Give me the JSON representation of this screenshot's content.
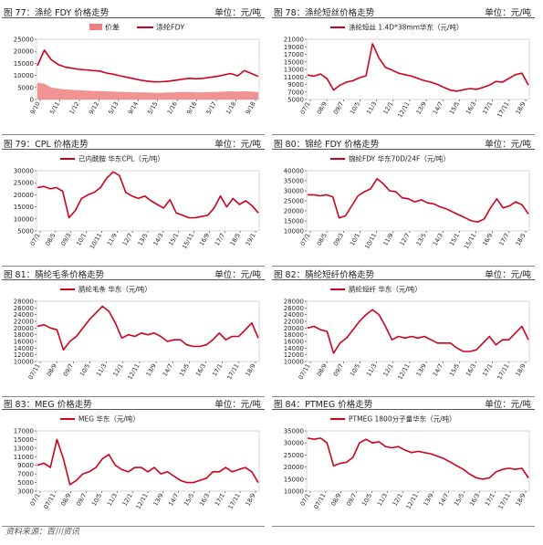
{
  "source": "资料来源：百川资讯",
  "chart_data": [
    {
      "type": "line",
      "title": "图 77：涤纶 FDY 价格走势",
      "unit": "单位：元/吨",
      "legend": [
        "价差",
        "涤纶FDY"
      ],
      "series_colors": [
        "#f08080",
        "#d0021b"
      ],
      "legend_placement": "top",
      "ylim": [
        0,
        25000
      ],
      "yticks": [
        0,
        5000,
        10000,
        15000,
        20000,
        25000
      ],
      "xticks": [
        "9/10",
        "5/11",
        "1/12",
        "9/12",
        "5/13",
        "9/14",
        "5/15",
        "1/16",
        "9/16",
        "5/17",
        "1/18",
        "9/18"
      ],
      "series": [
        {
          "name": "涤纶FDY",
          "kind": "line",
          "values": [
            14000,
            20500,
            16500,
            14500,
            13500,
            13000,
            12500,
            12300,
            12000,
            11800,
            11000,
            10500,
            9800,
            9200,
            8600,
            8000,
            7600,
            7300,
            7400,
            7600,
            8000,
            8400,
            8800,
            8600,
            8800,
            9200,
            9600,
            10200,
            10800,
            9800,
            12000,
            10800,
            9600
          ]
        },
        {
          "name": "价差",
          "kind": "area",
          "values": [
            7000,
            6500,
            5000,
            4500,
            4200,
            4000,
            3900,
            3700,
            3600,
            3500,
            3400,
            3300,
            3200,
            3100,
            3000,
            3000,
            2900,
            2800,
            2800,
            2900,
            3000,
            3100,
            3100,
            3000,
            3000,
            3100,
            3200,
            3300,
            3400,
            3300,
            3400,
            3300,
            3100
          ]
        }
      ]
    },
    {
      "type": "line",
      "title": "图 78：涤纶短丝价格走势",
      "unit": "单位：元/吨",
      "legend": [
        "涤纶短丝 1.4D*38mm华东（元/吨）"
      ],
      "series_colors": [
        "#d0021b"
      ],
      "legend_placement": "top",
      "ylim": [
        5000,
        21000
      ],
      "yticks": [
        5000,
        7000,
        9000,
        11000,
        13000,
        15000,
        17000,
        19000,
        21000
      ],
      "xticks": [
        "07/1",
        "08/9",
        "09/7",
        "10/5",
        "11/3",
        "12/1",
        "12/11",
        "13/9",
        "14/7",
        "15/5",
        "16/3",
        "17/1",
        "17/11",
        "18/9"
      ],
      "series": [
        {
          "name": "涤纶短丝 1.4D*38mm华东",
          "values": [
            11500,
            11200,
            11800,
            10500,
            7500,
            8800,
            9600,
            10000,
            10800,
            11300,
            19800,
            16000,
            13500,
            12800,
            12000,
            11600,
            11200,
            10600,
            10000,
            9600,
            9000,
            8200,
            7500,
            7200,
            7600,
            7900,
            7700,
            8200,
            8800,
            9800,
            9600,
            10600,
            11600,
            12000,
            8800
          ]
        }
      ]
    },
    {
      "type": "line",
      "title": "图 79：CPL 价格走势",
      "unit": "单位：元/吨",
      "legend": [
        "己内酰胺 华东CPL（元/吨）"
      ],
      "series_colors": [
        "#d0021b"
      ],
      "legend_placement": "top",
      "ylim": [
        5000,
        30000
      ],
      "yticks": [
        5000,
        10000,
        15000,
        20000,
        25000,
        30000
      ],
      "xticks": [
        "07/1",
        "08/5",
        "09/3",
        "10/1",
        "10/11",
        "11/9",
        "12/7",
        "13/5",
        "14/3",
        "15/1",
        "15/11",
        "16/9",
        "17/7",
        "18/5",
        "19/1"
      ],
      "series": [
        {
          "name": "己内酰胺 华东CPL",
          "values": [
            23000,
            23500,
            22500,
            23000,
            21500,
            10500,
            13500,
            18500,
            20000,
            21000,
            23000,
            27000,
            29500,
            28000,
            21000,
            19500,
            18500,
            19500,
            17500,
            16000,
            14500,
            18000,
            12500,
            11500,
            10500,
            10500,
            11000,
            11500,
            14500,
            19500,
            15000,
            18500,
            16000,
            17500,
            15500,
            12500
          ]
        }
      ]
    },
    {
      "type": "line",
      "title": "图 80：锦纶 FDY 价格走势",
      "unit": "单位：元/吨",
      "legend": [
        "锦纶FDY 华东70D/24F（元/吨）"
      ],
      "series_colors": [
        "#d0021b"
      ],
      "legend_placement": "top",
      "ylim": [
        10000,
        40000
      ],
      "yticks": [
        10000,
        15000,
        20000,
        25000,
        30000,
        35000,
        40000
      ],
      "xticks": [
        "07/1",
        "08/5",
        "09/3",
        "10/1",
        "10/11",
        "11/9",
        "12/7",
        "13/5",
        "14/3",
        "15/1",
        "15/11",
        "16/9",
        "17/7",
        "18/5"
      ],
      "series": [
        {
          "name": "锦纶FDY 华东70D/24F",
          "values": [
            28000,
            28000,
            27500,
            28000,
            27000,
            16500,
            17500,
            22500,
            27500,
            29500,
            31000,
            36000,
            33500,
            30000,
            29500,
            26500,
            26000,
            24500,
            25500,
            24000,
            23500,
            22000,
            21000,
            19500,
            18000,
            16500,
            15000,
            14500,
            16000,
            21500,
            26000,
            21500,
            22500,
            24500,
            23000,
            18500
          ]
        }
      ]
    },
    {
      "type": "line",
      "title": "图 81：腈纶毛条价格走势",
      "unit": "单位：元/吨",
      "legend": [
        "腈纶毛条 华东（元/吨）"
      ],
      "series_colors": [
        "#d0021b"
      ],
      "legend_placement": "top",
      "ylim": [
        10000,
        28000
      ],
      "yticks": [
        10000,
        12000,
        14000,
        16000,
        18000,
        20000,
        22000,
        24000,
        26000,
        28000
      ],
      "xticks": [
        "07/11",
        "08/9",
        "09/7",
        "10/5",
        "11/3",
        "12/1",
        "12/11",
        "13/9",
        "14/7",
        "15/5",
        "16/3",
        "17/1",
        "17/11",
        "18/9"
      ],
      "series": [
        {
          "name": "腈纶毛条 华东",
          "values": [
            20500,
            21000,
            20000,
            19500,
            13500,
            16000,
            17500,
            20000,
            22500,
            24500,
            26500,
            25000,
            21500,
            17000,
            18000,
            17500,
            18500,
            18000,
            18500,
            17500,
            16000,
            16500,
            16500,
            15000,
            14500,
            14500,
            15000,
            16500,
            18500,
            16500,
            17500,
            17500,
            19500,
            21500,
            17000
          ]
        }
      ]
    },
    {
      "type": "line",
      "title": "图 82：腈纶短纤价格走势",
      "unit": "单位：元/吨",
      "legend": [
        "腈纶短纤 华东（元/吨）"
      ],
      "series_colors": [
        "#d0021b"
      ],
      "legend_placement": "top",
      "ylim": [
        10000,
        28000
      ],
      "yticks": [
        10000,
        12000,
        14000,
        16000,
        18000,
        20000,
        22000,
        24000,
        26000,
        28000
      ],
      "xticks": [
        "07/11",
        "08/9",
        "09/7",
        "10/5",
        "11/3",
        "12/1",
        "12/11",
        "13/9",
        "14/7",
        "15/5",
        "16/3",
        "17/1",
        "17/11",
        "18/9"
      ],
      "series": [
        {
          "name": "腈纶短纤 华东",
          "values": [
            20000,
            20500,
            19500,
            19000,
            12500,
            15500,
            17000,
            19500,
            22000,
            24000,
            25500,
            24000,
            20500,
            16500,
            17500,
            17000,
            17500,
            17000,
            17500,
            16500,
            15500,
            15500,
            15500,
            14000,
            13000,
            13000,
            13500,
            15500,
            17500,
            15000,
            16500,
            16500,
            18500,
            20500,
            16500
          ]
        }
      ]
    },
    {
      "type": "line",
      "title": "图 83：MEG 价格走势",
      "unit": "单位：元/吨",
      "legend": [
        "MEG 华东（元/吨）"
      ],
      "series_colors": [
        "#d0021b"
      ],
      "legend_placement": "top",
      "ylim": [
        3000,
        17000
      ],
      "yticks": [
        3000,
        5000,
        7000,
        9000,
        11000,
        13000,
        15000,
        17000
      ],
      "xticks": [
        "07/1",
        "07/11",
        "08/9",
        "09/7",
        "10/5",
        "11/3",
        "12/1",
        "12/11",
        "13/9",
        "14/7",
        "15/5",
        "16/3",
        "17/1",
        "17/11",
        "18/9"
      ],
      "series": [
        {
          "name": "MEG 华东",
          "values": [
            9000,
            9500,
            8500,
            15000,
            10500,
            4500,
            5500,
            7000,
            7500,
            8500,
            10500,
            11500,
            9000,
            8000,
            7500,
            8500,
            8500,
            7500,
            8500,
            7000,
            7500,
            6500,
            5500,
            5000,
            5000,
            5500,
            6000,
            7500,
            7500,
            8500,
            7500,
            8000,
            8500,
            7500,
            5000
          ]
        }
      ]
    },
    {
      "type": "line",
      "title": "图 84：PTMEG 价格走势",
      "unit": "单位：元/吨",
      "legend": [
        "PTMEG 1800分子量华东（元/吨）"
      ],
      "series_colors": [
        "#d0021b"
      ],
      "legend_placement": "top",
      "ylim": [
        10000,
        35000
      ],
      "yticks": [
        10000,
        15000,
        20000,
        25000,
        30000,
        35000
      ],
      "xticks": [
        "07/1",
        "07/11",
        "08/9",
        "09/7",
        "10/5",
        "11/3",
        "12/1",
        "12/11",
        "13/9",
        "14/7",
        "15/5",
        "16/3",
        "17/1",
        "17/11",
        "18/9"
      ],
      "series": [
        {
          "name": "PTMEG 1800分子量华东",
          "values": [
            32000,
            31500,
            32000,
            30000,
            20500,
            21500,
            22000,
            24000,
            30000,
            31500,
            30000,
            30500,
            28500,
            28000,
            28500,
            27000,
            26000,
            26500,
            26000,
            25500,
            24500,
            23500,
            22000,
            20500,
            19000,
            17000,
            15500,
            15000,
            15500,
            18000,
            19000,
            19500,
            19000,
            19500,
            15500
          ]
        }
      ]
    }
  ]
}
